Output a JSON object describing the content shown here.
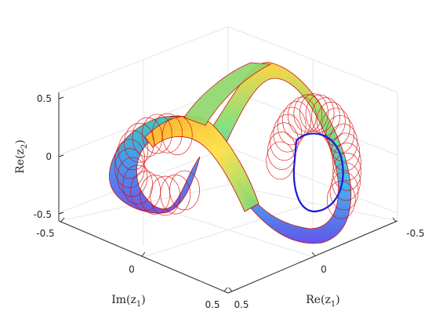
{
  "chart_data": {
    "type": "surface3d",
    "title": "",
    "axes": {
      "x": {
        "label_main": "Re(z",
        "label_sub": "1",
        "label_close": ")",
        "ticks": [
          "-0.5",
          "0",
          "0.5"
        ],
        "range": [
          -0.5,
          0.5
        ]
      },
      "y": {
        "label_main": "Im(z",
        "label_sub": "1",
        "label_close": ")",
        "ticks": [
          "-0.5",
          "0",
          "0.5"
        ],
        "range": [
          -0.5,
          0.5
        ]
      },
      "z": {
        "label_main": "Re(z",
        "label_sub": "2",
        "label_close": ")",
        "ticks": [
          "-0.5",
          "0",
          "0.5"
        ],
        "range": [
          -0.5,
          0.5
        ]
      }
    },
    "grid": true,
    "surface": {
      "description_colormap": "jet",
      "edge_color": "#e00000",
      "highlight_curve_color": "#1a1ad8"
    },
    "colors": {
      "axis": "#262626",
      "grid": "#e6e6e6",
      "pane": "#ffffff"
    }
  }
}
